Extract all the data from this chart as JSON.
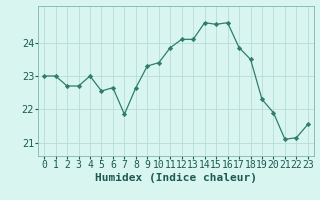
{
  "x": [
    0,
    1,
    2,
    3,
    4,
    5,
    6,
    7,
    8,
    9,
    10,
    11,
    12,
    13,
    14,
    15,
    16,
    17,
    18,
    19,
    20,
    21,
    22,
    23
  ],
  "y": [
    23.0,
    23.0,
    22.7,
    22.7,
    23.0,
    22.55,
    22.65,
    21.85,
    22.65,
    23.3,
    23.4,
    23.85,
    24.1,
    24.1,
    24.6,
    24.55,
    24.6,
    23.85,
    23.5,
    22.3,
    21.9,
    21.1,
    21.15,
    21.55
  ],
  "line_color": "#2e7d6e",
  "marker": "D",
  "marker_size": 2.2,
  "bg_color": "#d9f5f0",
  "grid_color": "#b8ddd8",
  "xlabel": "Humidex (Indice chaleur)",
  "xlim": [
    -0.5,
    23.5
  ],
  "ylim": [
    20.6,
    25.1
  ],
  "yticks": [
    21,
    22,
    23,
    24
  ],
  "xlabel_fontsize": 8,
  "tick_fontsize": 7
}
